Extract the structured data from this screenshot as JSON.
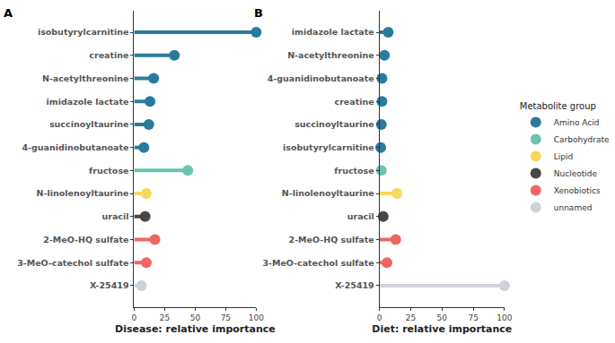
{
  "chart_data": [
    {
      "type": "lollipop",
      "panel": "A",
      "orientation": "horizontal",
      "x_label": "Disease: relative importance",
      "categories": [
        "isobutyrylcarnitine",
        "fructose",
        "creatine",
        "2-MeO-HQ sulfate",
        "N-acetylthreonine",
        "imidazole lactate",
        "succinoyltaurine",
        "3-MeO-catechol sulfate",
        "N-linolenoyltaurine",
        "uracil",
        "4-guanidinobutanoate",
        "X-25419"
      ],
      "series": [
        {
          "name": "Amino Acid",
          "color": "#2b7a9c",
          "values": [
            100,
            null,
            33,
            null,
            16,
            13,
            12,
            null,
            null,
            null,
            8,
            null
          ]
        },
        {
          "name": "Carbohydrate",
          "color": "#6cc4b0",
          "values": [
            null,
            44,
            null,
            null,
            null,
            null,
            null,
            null,
            null,
            null,
            null,
            null
          ]
        },
        {
          "name": "Lipid",
          "color": "#f6d760",
          "values": [
            null,
            null,
            null,
            null,
            null,
            null,
            null,
            null,
            10,
            null,
            null,
            null
          ]
        },
        {
          "name": "Nucleotide",
          "color": "#474747",
          "values": [
            null,
            null,
            null,
            null,
            null,
            null,
            null,
            null,
            null,
            9,
            null,
            null
          ]
        },
        {
          "name": "Xenobiotics",
          "color": "#ee6662",
          "values": [
            null,
            null,
            null,
            17,
            null,
            null,
            null,
            10,
            null,
            null,
            null,
            null
          ]
        },
        {
          "name": "unnamed",
          "color": "#cdd2db",
          "values": [
            null,
            null,
            null,
            null,
            null,
            null,
            null,
            null,
            null,
            null,
            null,
            6
          ]
        }
      ],
      "xlim": [
        0,
        100
      ],
      "xticks": [
        0,
        25,
        50,
        75,
        100
      ],
      "grid": false,
      "legend": "right",
      "legend_title": "Metabolite group"
    },
    {
      "type": "lollipop",
      "panel": "B",
      "orientation": "horizontal",
      "x_label": "Diet: relative importance",
      "categories": [
        "X-25419",
        "N-linolenoyltaurine",
        "2-MeO-HQ sulfate",
        "imidazole lactate",
        "3-MeO-catechol sulfate",
        "N-acetylthreonine",
        "uracil",
        "4-guanidinobutanoate",
        "creatine",
        "fructose",
        "succinoyltaurine",
        "isobutyrylcarnitine"
      ],
      "series": [
        {
          "name": "Amino Acid",
          "color": "#2b7a9c",
          "values": [
            null,
            null,
            null,
            7,
            null,
            4,
            null,
            2,
            2,
            null,
            1.5,
            1
          ]
        },
        {
          "name": "Carbohydrate",
          "color": "#6cc4b0",
          "values": [
            null,
            null,
            null,
            null,
            null,
            null,
            null,
            null,
            null,
            1.5,
            null,
            null
          ]
        },
        {
          "name": "Lipid",
          "color": "#f6d760",
          "values": [
            null,
            14,
            null,
            null,
            null,
            null,
            null,
            null,
            null,
            null,
            null,
            null
          ]
        },
        {
          "name": "Nucleotide",
          "color": "#474747",
          "values": [
            null,
            null,
            null,
            null,
            null,
            null,
            3,
            null,
            null,
            null,
            null,
            null
          ]
        },
        {
          "name": "Xenobiotics",
          "color": "#ee6662",
          "values": [
            null,
            null,
            13,
            null,
            6,
            null,
            null,
            null,
            null,
            null,
            null,
            null
          ]
        },
        {
          "name": "unnamed",
          "color": "#cdd2db",
          "values": [
            100,
            null,
            null,
            null,
            null,
            null,
            null,
            null,
            null,
            null,
            null,
            null
          ]
        }
      ],
      "xlim": [
        0,
        100
      ],
      "xticks": [
        0,
        25,
        50,
        75,
        100
      ],
      "grid": false
    }
  ]
}
